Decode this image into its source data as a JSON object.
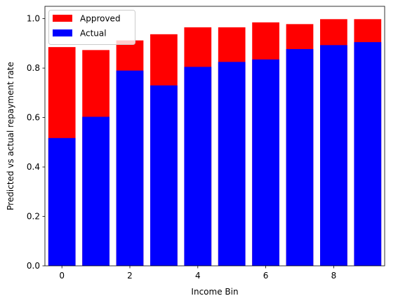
{
  "chart_data": {
    "type": "bar",
    "mode": "overlaid",
    "x": [
      0,
      1,
      2,
      3,
      4,
      5,
      6,
      7,
      8,
      9
    ],
    "series": [
      {
        "name": "Approved",
        "color": "#ff0000",
        "values": [
          0.885,
          0.873,
          0.912,
          0.937,
          0.965,
          0.965,
          0.985,
          0.978,
          0.998,
          0.998
        ]
      },
      {
        "name": "Actual",
        "color": "#0000ff",
        "values": [
          0.517,
          0.603,
          0.79,
          0.73,
          0.805,
          0.825,
          0.835,
          0.877,
          0.893,
          0.905
        ]
      }
    ],
    "xlabel": "Income Bin",
    "ylabel": "Predicted vs actual repayment rate",
    "xlim": [
      -0.5,
      9.5
    ],
    "ylim": [
      0.0,
      1.05
    ],
    "xticks": [
      "0",
      "2",
      "4",
      "6",
      "8"
    ],
    "yticks": [
      "0.0",
      "0.2",
      "0.4",
      "0.6",
      "0.8",
      "1.0"
    ],
    "legend_position": "top-left",
    "grid": false
  }
}
